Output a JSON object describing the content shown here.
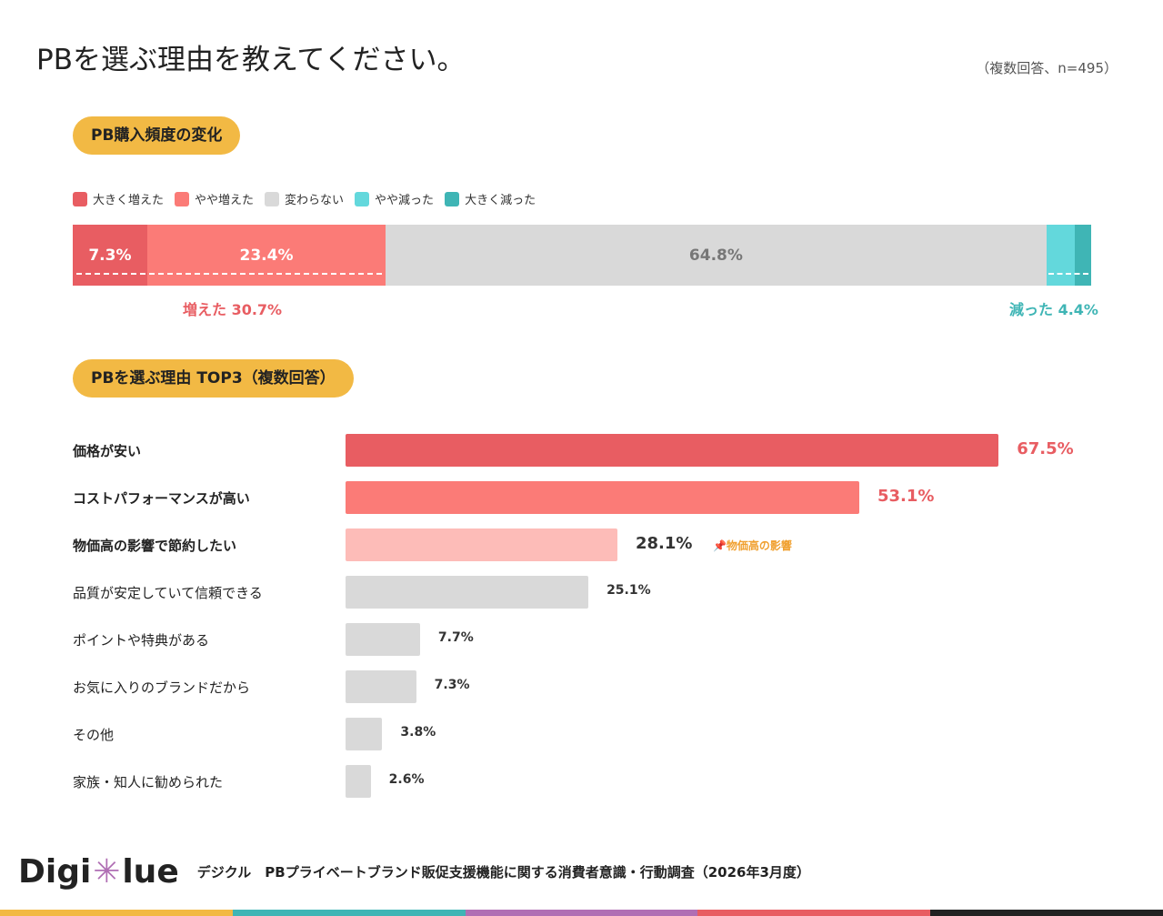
{
  "title": "PBを選ぶ理由を教えてください。",
  "note": "（複数回答、n=495）",
  "section1": "PB購入頻度の変化",
  "section2": "PBを選ぶ理由 TOP3（複数回答）",
  "chart_data": [
    {
      "type": "bar",
      "orientation": "horizontal-stacked",
      "series": [
        {
          "name": "大きく増えた",
          "value": 7.3,
          "label": "7.3%",
          "color": "#e85d62"
        },
        {
          "name": "やや増えた",
          "value": 23.4,
          "label": "23.4%",
          "color": "#fb7b77"
        },
        {
          "name": "変わらない",
          "value": 64.8,
          "label": "64.8%",
          "color": "#d9d9d9"
        },
        {
          "name": "やや減った",
          "value": 2.8,
          "label": "",
          "color": "#63d8dc"
        },
        {
          "name": "大きく減った",
          "value": 1.6,
          "label": "",
          "color": "#3fb5b5"
        }
      ],
      "legend": "top-left",
      "annotations": {
        "increased": "増えた 30.7%",
        "decreased": "減った 4.4%"
      }
    },
    {
      "type": "bar",
      "orientation": "horizontal",
      "categories": [
        "価格が安い",
        "コストパフォーマンスが高い",
        "物価高の影響で節約したい",
        "品質が安定していて信頼できる",
        "ポイントや特典がある",
        "お気に入りのブランドだから",
        "その他",
        "家族・知人に勧められた"
      ],
      "values": [
        67.5,
        53.1,
        28.1,
        25.1,
        7.7,
        7.3,
        3.8,
        2.6
      ],
      "labels": [
        "67.5%",
        "53.1%",
        "28.1%",
        "25.1%",
        "7.7%",
        "7.3%",
        "3.8%",
        "2.6%"
      ],
      "colors": [
        "#e85d62",
        "#fb7b77",
        "#fdbcb8",
        "#d9d9d9",
        "#d9d9d9",
        "#d9d9d9",
        "#d9d9d9",
        "#d9d9d9"
      ],
      "highlight_tag": "物価高の影響"
    }
  ],
  "footer": {
    "logo": "Digiclue",
    "text": "デジクル　PBプライベートブランド販促支援機能に関する消費者意識・行動調査（2026年3月度）"
  },
  "stripe_colors": [
    "#f2b944",
    "#3fb5b5",
    "#b06fb4",
    "#e85d62",
    "#222222"
  ]
}
